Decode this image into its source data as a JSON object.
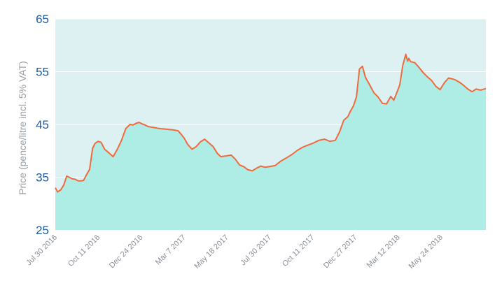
{
  "chart_data": {
    "type": "area",
    "ylabel": "Price (pence/litre incl. 5% VAT)",
    "ylim": [
      25,
      65
    ],
    "yticks": [
      "65",
      "55",
      "45",
      "35",
      "25"
    ],
    "xticks": [
      "Jul 30 2016",
      "Oct 11 2016",
      "Dec 24 2016",
      "Mar 7 2017",
      "May 18 2017",
      "Jul 30 2017",
      "Oct 11 2017",
      "Dec 27 2017",
      "Mar 12 2018",
      "May 24 2018"
    ],
    "grid": true,
    "colors": {
      "line": "#f06a3c",
      "fill": "#aeece6",
      "plot_bg": "#ddf1f3",
      "tick_text": "#1d5a9c"
    },
    "series": [
      {
        "x": [
          "2016-07-30",
          "2016-08-03",
          "2016-08-08",
          "2016-08-13",
          "2016-08-18",
          "2016-08-22",
          "2016-08-27",
          "2016-09-01",
          "2016-09-06",
          "2016-09-11",
          "2016-09-15",
          "2016-09-20",
          "2016-09-25",
          "2016-09-30",
          "2016-10-04",
          "2016-10-09",
          "2016-10-14",
          "2016-10-20",
          "2016-10-27",
          "2016-11-03",
          "2016-11-10",
          "2016-11-17",
          "2016-11-24",
          "2016-12-01",
          "2016-12-06",
          "2016-12-11",
          "2016-12-16",
          "2016-12-21",
          "2016-12-26",
          "2016-12-31",
          "2017-01-05",
          "2017-01-10",
          "2017-01-15",
          "2017-01-20",
          "2017-01-30",
          "2017-02-09",
          "2017-02-19",
          "2017-02-24",
          "2017-03-01",
          "2017-03-07",
          "2017-03-14",
          "2017-03-21",
          "2017-03-28",
          "2017-04-04",
          "2017-04-11",
          "2017-04-18",
          "2017-04-25",
          "2017-05-01",
          "2017-05-08",
          "2017-05-18",
          "2017-05-25",
          "2017-06-01",
          "2017-06-08",
          "2017-06-15",
          "2017-06-22",
          "2017-06-29",
          "2017-07-06",
          "2017-07-13",
          "2017-07-20",
          "2017-07-30",
          "2017-08-08",
          "2017-08-17",
          "2017-08-27",
          "2017-09-05",
          "2017-09-14",
          "2017-09-23",
          "2017-10-02",
          "2017-10-11",
          "2017-10-20",
          "2017-10-29",
          "2017-11-07",
          "2017-11-14",
          "2017-11-21",
          "2017-11-28",
          "2017-12-02",
          "2017-12-07",
          "2017-12-12",
          "2017-12-17",
          "2017-12-22",
          "2017-12-27",
          "2018-01-03",
          "2018-01-10",
          "2018-01-17",
          "2018-01-24",
          "2018-01-31",
          "2018-02-07",
          "2018-02-12",
          "2018-02-17",
          "2018-02-22",
          "2018-02-27",
          "2018-03-04",
          "2018-03-07",
          "2018-03-09",
          "2018-03-12",
          "2018-03-19",
          "2018-03-26",
          "2018-04-02",
          "2018-04-09",
          "2018-04-16",
          "2018-04-23",
          "2018-04-30",
          "2018-05-07",
          "2018-05-14",
          "2018-05-24",
          "2018-06-01",
          "2018-06-08",
          "2018-06-15",
          "2018-06-22",
          "2018-06-29",
          "2018-07-06",
          "2018-07-15"
        ],
        "y": [
          33.0,
          32.2,
          32.6,
          33.5,
          35.2,
          35.0,
          34.7,
          34.6,
          34.3,
          34.3,
          34.4,
          35.5,
          36.5,
          40.5,
          41.4,
          41.8,
          41.6,
          40.3,
          39.6,
          38.9,
          40.3,
          42.0,
          44.2,
          45.0,
          44.9,
          45.2,
          45.4,
          45.1,
          44.9,
          44.6,
          44.5,
          44.4,
          44.3,
          44.2,
          44.1,
          44.0,
          43.8,
          43.1,
          42.4,
          41.2,
          40.3,
          40.8,
          41.7,
          42.2,
          41.5,
          40.8,
          39.5,
          38.9,
          39.0,
          39.2,
          38.4,
          37.3,
          37.0,
          36.4,
          36.2,
          36.7,
          37.1,
          36.9,
          37.0,
          37.2,
          38.0,
          38.6,
          39.3,
          40.1,
          40.7,
          41.1,
          41.5,
          42.0,
          42.2,
          41.8,
          42.0,
          43.6,
          45.8,
          46.5,
          47.5,
          48.5,
          50.2,
          55.5,
          56.0,
          53.9,
          52.5,
          51.0,
          50.2,
          49.0,
          48.9,
          50.3,
          49.6,
          51.0,
          52.5,
          56.2,
          58.3,
          57.0,
          57.5,
          56.9,
          56.7,
          55.8,
          54.8,
          54.0,
          53.3,
          52.2,
          51.6,
          52.9,
          53.8,
          53.5,
          53.0,
          52.4,
          51.7,
          51.2,
          51.7,
          51.5,
          51.8
        ]
      }
    ]
  }
}
